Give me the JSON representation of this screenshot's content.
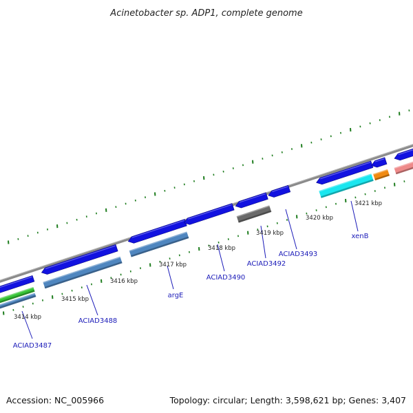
{
  "title": "Acinetobacter sp. ADP1, complete genome",
  "footer": {
    "accession": "Accession: NC_005966",
    "topology": "Topology: circular; Length: 3,598,621 bp; Genes: 3,407"
  },
  "colors": {
    "backbone": "#8a8a8a",
    "tick": "#1e7d1e",
    "forward_gene": "#1212e0",
    "blue_grey": "#4f86bf",
    "cyan": "#19e6ef",
    "dark_grey": "#6a6a6a",
    "orange": "#f08a12",
    "pink": "#ee8a8a",
    "green": "#37c437",
    "label": "#1a1ab8"
  },
  "kbp_labels": [
    "3414 kbp",
    "3415 kbp",
    "3416 kbp",
    "3417 kbp",
    "3418 kbp",
    "3419 kbp",
    "3420 kbp",
    "3421 kbp"
  ],
  "gene_labels": [
    "ACIAD3487",
    "ACIAD3488",
    "argE",
    "ACIAD3490",
    "ACIAD3492",
    "ACIAD3493",
    "xenB"
  ]
}
